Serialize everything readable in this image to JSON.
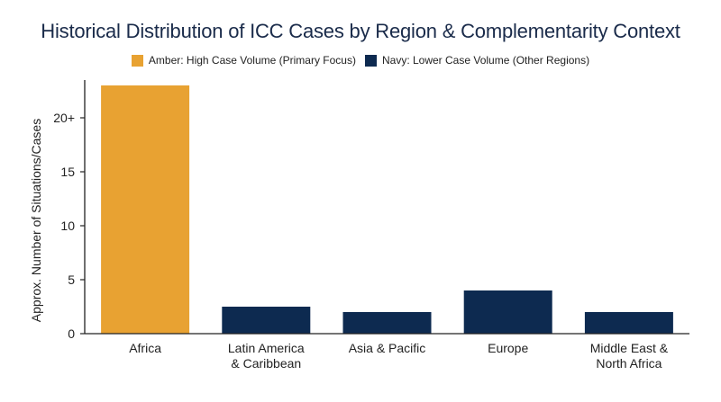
{
  "chart_data": {
    "type": "bar",
    "title": "Historical Distribution of ICC Cases by Region & Complementarity Context",
    "xlabel": "",
    "ylabel": "Approx. Number of Situations/Cases",
    "ylim": [
      0,
      23.5
    ],
    "yticks": [
      {
        "value": 0,
        "label": "0"
      },
      {
        "value": 5,
        "label": "5"
      },
      {
        "value": 10,
        "label": "10"
      },
      {
        "value": 15,
        "label": "15"
      },
      {
        "value": 20,
        "label": "20+"
      }
    ],
    "categories": [
      [
        "Africa"
      ],
      [
        "Latin America",
        "& Caribbean"
      ],
      [
        "Asia & Pacific"
      ],
      [
        "Europe"
      ],
      [
        "Middle East &",
        "North Africa"
      ]
    ],
    "values": [
      23,
      2.5,
      2,
      4,
      2
    ],
    "bar_groups": [
      "high",
      "low",
      "low",
      "low",
      "low"
    ],
    "legend": [
      {
        "key": "high",
        "label": "Amber: High Case Volume (Primary Focus)",
        "color": "#e8a232"
      },
      {
        "key": "low",
        "label": "Navy: Lower Case Volume (Other Regions)",
        "color": "#0d2a50"
      }
    ],
    "grid": false,
    "legend_position": "top-center"
  }
}
